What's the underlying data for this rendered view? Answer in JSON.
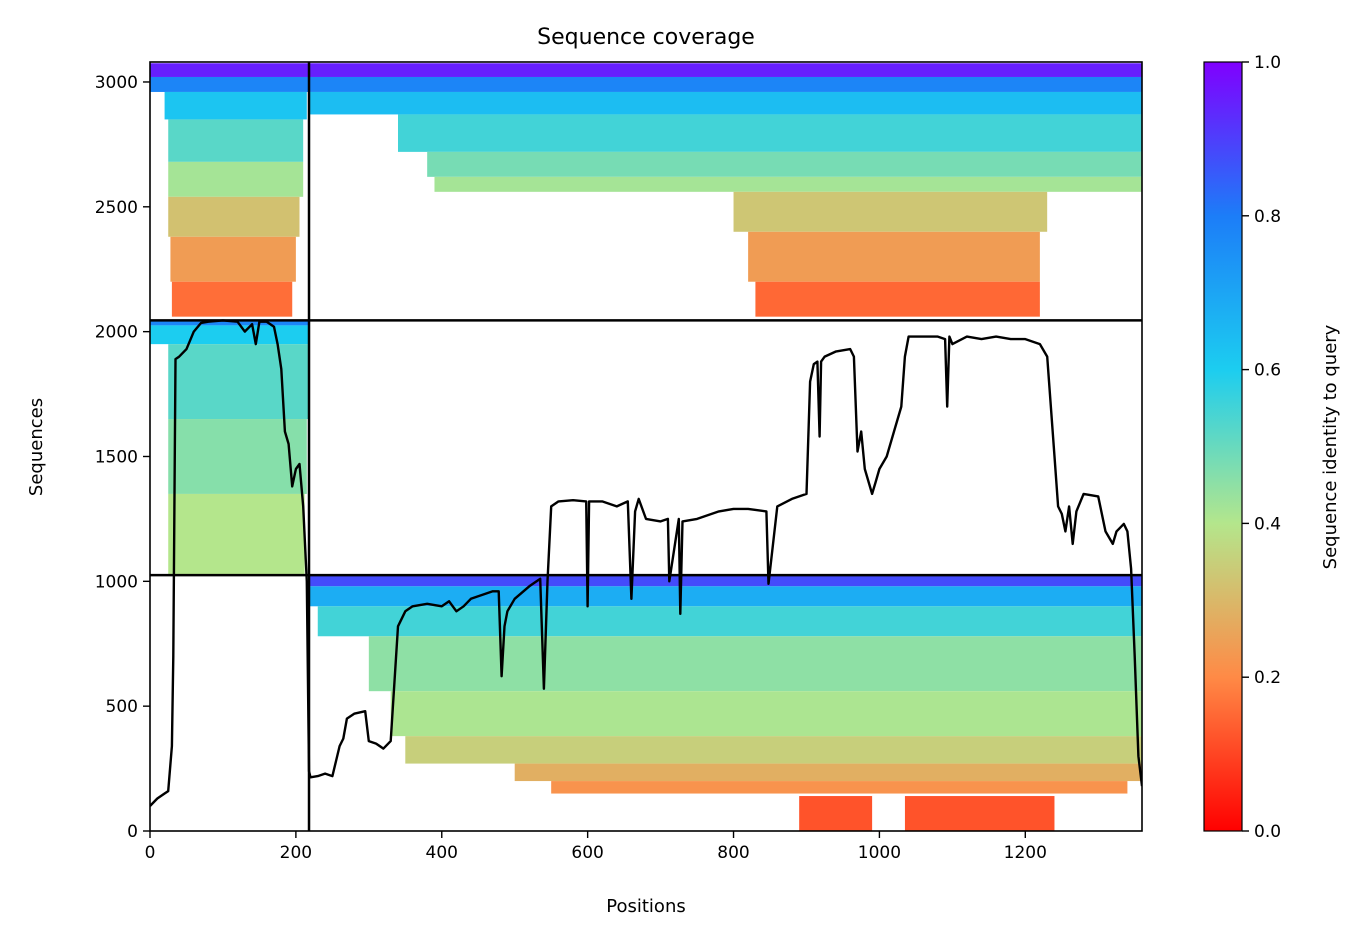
{
  "chart_data": {
    "type": "heatmap",
    "title": "Sequence coverage",
    "xlabel": "Positions",
    "ylabel": "Sequences",
    "xlim": [
      0,
      1360
    ],
    "ylim": [
      0,
      3080
    ],
    "xticks": [
      0,
      200,
      400,
      600,
      800,
      1000,
      1200
    ],
    "yticks": [
      0,
      500,
      1000,
      1500,
      2000,
      2500,
      3000
    ],
    "grid": false,
    "colormap": "rainbow",
    "colorbar": {
      "label": "Sequence identity to query",
      "range": [
        0,
        1
      ],
      "ticks": [
        "0.0",
        "0.2",
        "0.4",
        "0.6",
        "0.8",
        "1.0"
      ],
      "stops": [
        "#ff0000",
        "#ff8a46",
        "#b4e68c",
        "#1ccdf0",
        "#1c7df8",
        "#8000ff"
      ]
    },
    "block_boundaries": {
      "x": [
        218
      ],
      "y": [
        1025,
        2045
      ]
    },
    "blocks": [
      {
        "x_range": [
          0,
          218
        ],
        "y_range": [
          2045,
          3080
        ],
        "rows": [
          {
            "x": [
              0,
              218
            ],
            "y": [
              3020,
              3075
            ],
            "identity": 0.95
          },
          {
            "x": [
              0,
              218
            ],
            "y": [
              2960,
              3020
            ],
            "identity": 0.78
          },
          {
            "x": [
              20,
              215
            ],
            "y": [
              2850,
              2960
            ],
            "identity": 0.62
          },
          {
            "x": [
              25,
              210
            ],
            "y": [
              2680,
              2850
            ],
            "identity": 0.52
          },
          {
            "x": [
              25,
              210
            ],
            "y": [
              2540,
              2680
            ],
            "identity": 0.42
          },
          {
            "x": [
              25,
              205
            ],
            "y": [
              2380,
              2540
            ],
            "identity": 0.32
          },
          {
            "x": [
              28,
              200
            ],
            "y": [
              2200,
              2380
            ],
            "identity": 0.24
          },
          {
            "x": [
              30,
              195
            ],
            "y": [
              2060,
              2200
            ],
            "identity": 0.16
          }
        ]
      },
      {
        "x_range": [
          218,
          1360
        ],
        "y_range": [
          2045,
          3080
        ],
        "rows": [
          {
            "x": [
              218,
              1360
            ],
            "y": [
              3020,
              3075
            ],
            "identity": 0.95
          },
          {
            "x": [
              218,
              1360
            ],
            "y": [
              2960,
              3020
            ],
            "identity": 0.78
          },
          {
            "x": [
              218,
              1360
            ],
            "y": [
              2870,
              2960
            ],
            "identity": 0.64
          },
          {
            "x": [
              340,
              1360
            ],
            "y": [
              2720,
              2870
            ],
            "identity": 0.55
          },
          {
            "x": [
              380,
              1360
            ],
            "y": [
              2620,
              2720
            ],
            "identity": 0.48
          },
          {
            "x": [
              390,
              1360
            ],
            "y": [
              2560,
              2620
            ],
            "identity": 0.42
          },
          {
            "x": [
              800,
              1230
            ],
            "y": [
              2400,
              2560
            ],
            "identity": 0.33
          },
          {
            "x": [
              820,
              1220
            ],
            "y": [
              2200,
              2400
            ],
            "identity": 0.24
          },
          {
            "x": [
              830,
              1220
            ],
            "y": [
              2060,
              2200
            ],
            "identity": 0.15
          }
        ]
      },
      {
        "x_range": [
          0,
          218
        ],
        "y_range": [
          1025,
          2045
        ],
        "rows": [
          {
            "x": [
              0,
              218
            ],
            "y": [
              2025,
              2045
            ],
            "identity": 0.78
          },
          {
            "x": [
              0,
              218
            ],
            "y": [
              1950,
              2025
            ],
            "identity": 0.6
          },
          {
            "x": [
              25,
              218
            ],
            "y": [
              1650,
              1950
            ],
            "identity": 0.52
          },
          {
            "x": [
              25,
              215
            ],
            "y": [
              1350,
              1650
            ],
            "identity": 0.46
          },
          {
            "x": [
              25,
              212
            ],
            "y": [
              1025,
              1350
            ],
            "identity": 0.4
          }
        ]
      },
      {
        "x_range": [
          218,
          1360
        ],
        "y_range": [
          0,
          1025
        ],
        "rows": [
          {
            "x": [
              218,
              1360
            ],
            "y": [
              980,
              1025
            ],
            "identity": 0.88
          },
          {
            "x": [
              218,
              1360
            ],
            "y": [
              900,
              980
            ],
            "identity": 0.68
          },
          {
            "x": [
              230,
              1360
            ],
            "y": [
              780,
              900
            ],
            "identity": 0.55
          },
          {
            "x": [
              300,
              1360
            ],
            "y": [
              560,
              780
            ],
            "identity": 0.45
          },
          {
            "x": [
              330,
              1360
            ],
            "y": [
              380,
              560
            ],
            "identity": 0.41
          },
          {
            "x": [
              350,
              1360
            ],
            "y": [
              270,
              380
            ],
            "identity": 0.35
          },
          {
            "x": [
              500,
              1360
            ],
            "y": [
              200,
              270
            ],
            "identity": 0.28
          },
          {
            "x": [
              550,
              1340
            ],
            "y": [
              150,
              200
            ],
            "identity": 0.22
          },
          {
            "x": [
              890,
              990
            ],
            "y": [
              0,
              140
            ],
            "identity": 0.12
          },
          {
            "x": [
              1035,
              1240
            ],
            "y": [
              0,
              140
            ],
            "identity": 0.12
          }
        ]
      }
    ],
    "coverage_line": {
      "color": "#000000",
      "x": [
        0,
        10,
        20,
        25,
        30,
        32,
        35,
        40,
        50,
        60,
        70,
        80,
        100,
        120,
        130,
        140,
        145,
        150,
        160,
        170,
        175,
        180,
        185,
        190,
        195,
        200,
        205,
        210,
        215,
        218,
        220,
        230,
        240,
        250,
        255,
        260,
        265,
        270,
        280,
        295,
        300,
        310,
        320,
        330,
        340,
        350,
        360,
        380,
        400,
        410,
        420,
        430,
        440,
        460,
        470,
        478,
        482,
        486,
        490,
        500,
        520,
        530,
        535,
        540,
        545,
        550,
        560,
        580,
        598,
        600,
        602,
        620,
        640,
        655,
        660,
        665,
        670,
        680,
        700,
        710,
        712,
        725,
        727,
        730,
        750,
        780,
        800,
        820,
        845,
        848,
        860,
        880,
        900,
        905,
        910,
        915,
        918,
        920,
        925,
        940,
        960,
        965,
        970,
        975,
        980,
        990,
        995,
        1000,
        1010,
        1020,
        1030,
        1035,
        1040,
        1060,
        1080,
        1090,
        1093,
        1096,
        1100,
        1120,
        1140,
        1160,
        1180,
        1200,
        1220,
        1230,
        1240,
        1245,
        1250,
        1255,
        1260,
        1265,
        1270,
        1280,
        1300,
        1310,
        1320,
        1325,
        1335,
        1340,
        1345,
        1350,
        1355,
        1360
      ],
      "y": [
        100,
        130,
        150,
        160,
        340,
        700,
        1890,
        1900,
        1930,
        2000,
        2035,
        2040,
        2045,
        2040,
        2000,
        2030,
        1950,
        2040,
        2040,
        2020,
        1950,
        1850,
        1600,
        1550,
        1380,
        1450,
        1470,
        1300,
        1000,
        240,
        215,
        220,
        230,
        220,
        280,
        340,
        370,
        450,
        470,
        480,
        360,
        350,
        330,
        360,
        820,
        880,
        900,
        910,
        900,
        920,
        880,
        900,
        930,
        950,
        960,
        960,
        620,
        820,
        880,
        930,
        980,
        1000,
        1010,
        570,
        1000,
        1300,
        1320,
        1325,
        1320,
        900,
        1320,
        1320,
        1300,
        1320,
        930,
        1280,
        1330,
        1250,
        1240,
        1250,
        1000,
        1250,
        870,
        1240,
        1250,
        1280,
        1290,
        1290,
        1280,
        990,
        1300,
        1330,
        1350,
        1800,
        1870,
        1880,
        1580,
        1880,
        1900,
        1920,
        1930,
        1900,
        1520,
        1600,
        1450,
        1350,
        1400,
        1450,
        1500,
        1600,
        1700,
        1900,
        1980,
        1980,
        1980,
        1970,
        1700,
        1980,
        1950,
        1980,
        1970,
        1980,
        1970,
        1970,
        1950,
        1900,
        1500,
        1300,
        1270,
        1200,
        1300,
        1150,
        1280,
        1350,
        1340,
        1200,
        1150,
        1200,
        1230,
        1200,
        1050,
        700,
        300,
        180
      ]
    }
  }
}
